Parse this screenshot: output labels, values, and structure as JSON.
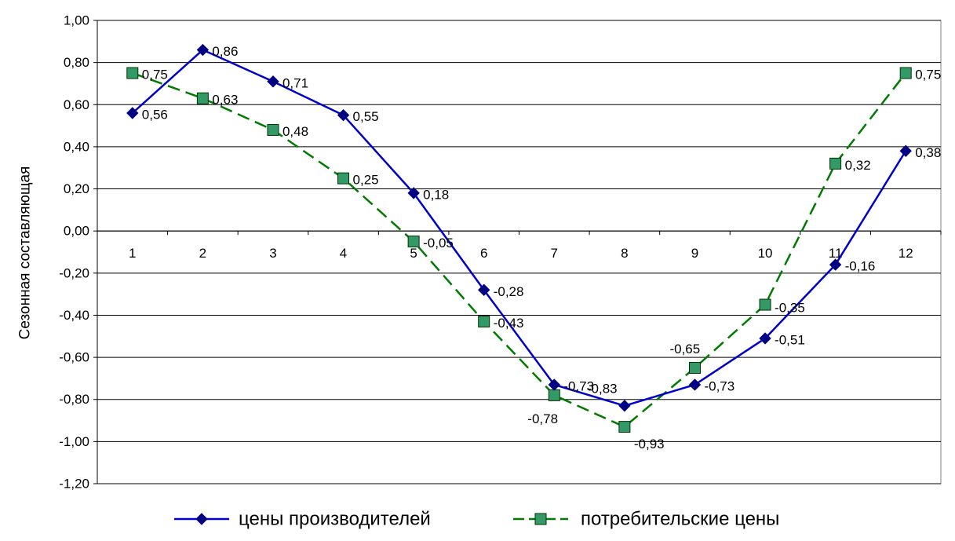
{
  "chart_data": {
    "type": "line",
    "title": "",
    "xlabel": "",
    "ylabel": "Сезонная составляющая",
    "x": [
      1,
      2,
      3,
      4,
      5,
      6,
      7,
      8,
      9,
      10,
      11,
      12
    ],
    "x_tick_labels": [
      "1",
      "2",
      "3",
      "4",
      "5",
      "6",
      "7",
      "8",
      "9",
      "10",
      "11",
      "12"
    ],
    "ylim": [
      -1.2,
      1.0
    ],
    "y_ticks": [
      1.0,
      0.8,
      0.6,
      0.4,
      0.2,
      0.0,
      -0.2,
      -0.4,
      -0.6,
      -0.8,
      -1.0,
      -1.2
    ],
    "y_tick_labels": [
      "1,00",
      "0,80",
      "0,60",
      "0,40",
      "0,20",
      "0,00",
      "-0,20",
      "-0,40",
      "-0,60",
      "-0,80",
      "-1,00",
      "-1,20"
    ],
    "grid": true,
    "legend_position": "bottom",
    "series": [
      {
        "name": "цены производителей",
        "color": "#0000cc",
        "marker": "diamond",
        "marker_color": "#000080",
        "line_style": "solid",
        "values": [
          0.56,
          0.86,
          0.71,
          0.55,
          0.18,
          -0.28,
          -0.73,
          -0.83,
          -0.73,
          -0.51,
          -0.16,
          0.38
        ],
        "data_labels": [
          "0,56",
          "0,86",
          "0,71",
          "0,55",
          "0,18",
          "-0,28",
          "-0,73",
          "-0,83",
          "-0,73",
          "-0,51",
          "-0,16",
          "0,38"
        ]
      },
      {
        "name": "потребительские цены",
        "color": "#007a00",
        "marker": "square",
        "marker_color": "#339966",
        "line_style": "dashed",
        "values": [
          0.75,
          0.63,
          0.48,
          0.25,
          -0.05,
          -0.43,
          -0.78,
          -0.93,
          -0.65,
          -0.35,
          0.32,
          0.75
        ],
        "data_labels": [
          "0,75",
          "0,63",
          "0,48",
          "0,25",
          "-0,05",
          "-0,43",
          "-0,78",
          "-0,93",
          "-0,65",
          "-0,35",
          "0,32",
          "0,75"
        ]
      }
    ]
  }
}
